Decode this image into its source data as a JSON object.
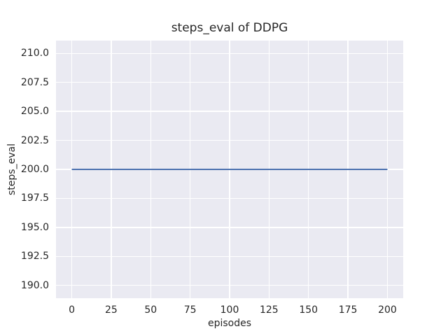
{
  "figure": {
    "background": "#ffffff"
  },
  "chart_data": {
    "type": "line",
    "title": "steps_eval of DDPG",
    "xlabel": "episodes",
    "ylabel": "steps_eval",
    "xlim": [
      -10,
      210
    ],
    "ylim": [
      188.9,
      211.1
    ],
    "xticks": [
      0,
      25,
      50,
      75,
      100,
      125,
      150,
      175,
      200
    ],
    "xtick_labels": [
      "0",
      "25",
      "50",
      "75",
      "100",
      "125",
      "150",
      "175",
      "200"
    ],
    "yticks": [
      190.0,
      192.5,
      195.0,
      197.5,
      200.0,
      202.5,
      205.0,
      207.5,
      210.0
    ],
    "ytick_labels": [
      "190.0",
      "192.5",
      "195.0",
      "197.5",
      "200.0",
      "202.5",
      "205.0",
      "207.5",
      "210.0"
    ],
    "grid": true,
    "legend_position": "none",
    "plot_background": "#EAEAF2",
    "grid_color": "#FFFFFF",
    "text_color": "#262626",
    "line_width": 2,
    "series": [
      {
        "name": "steps_eval",
        "color": "#4C72B0",
        "x": [
          0,
          200
        ],
        "y": [
          200,
          200
        ]
      }
    ]
  }
}
